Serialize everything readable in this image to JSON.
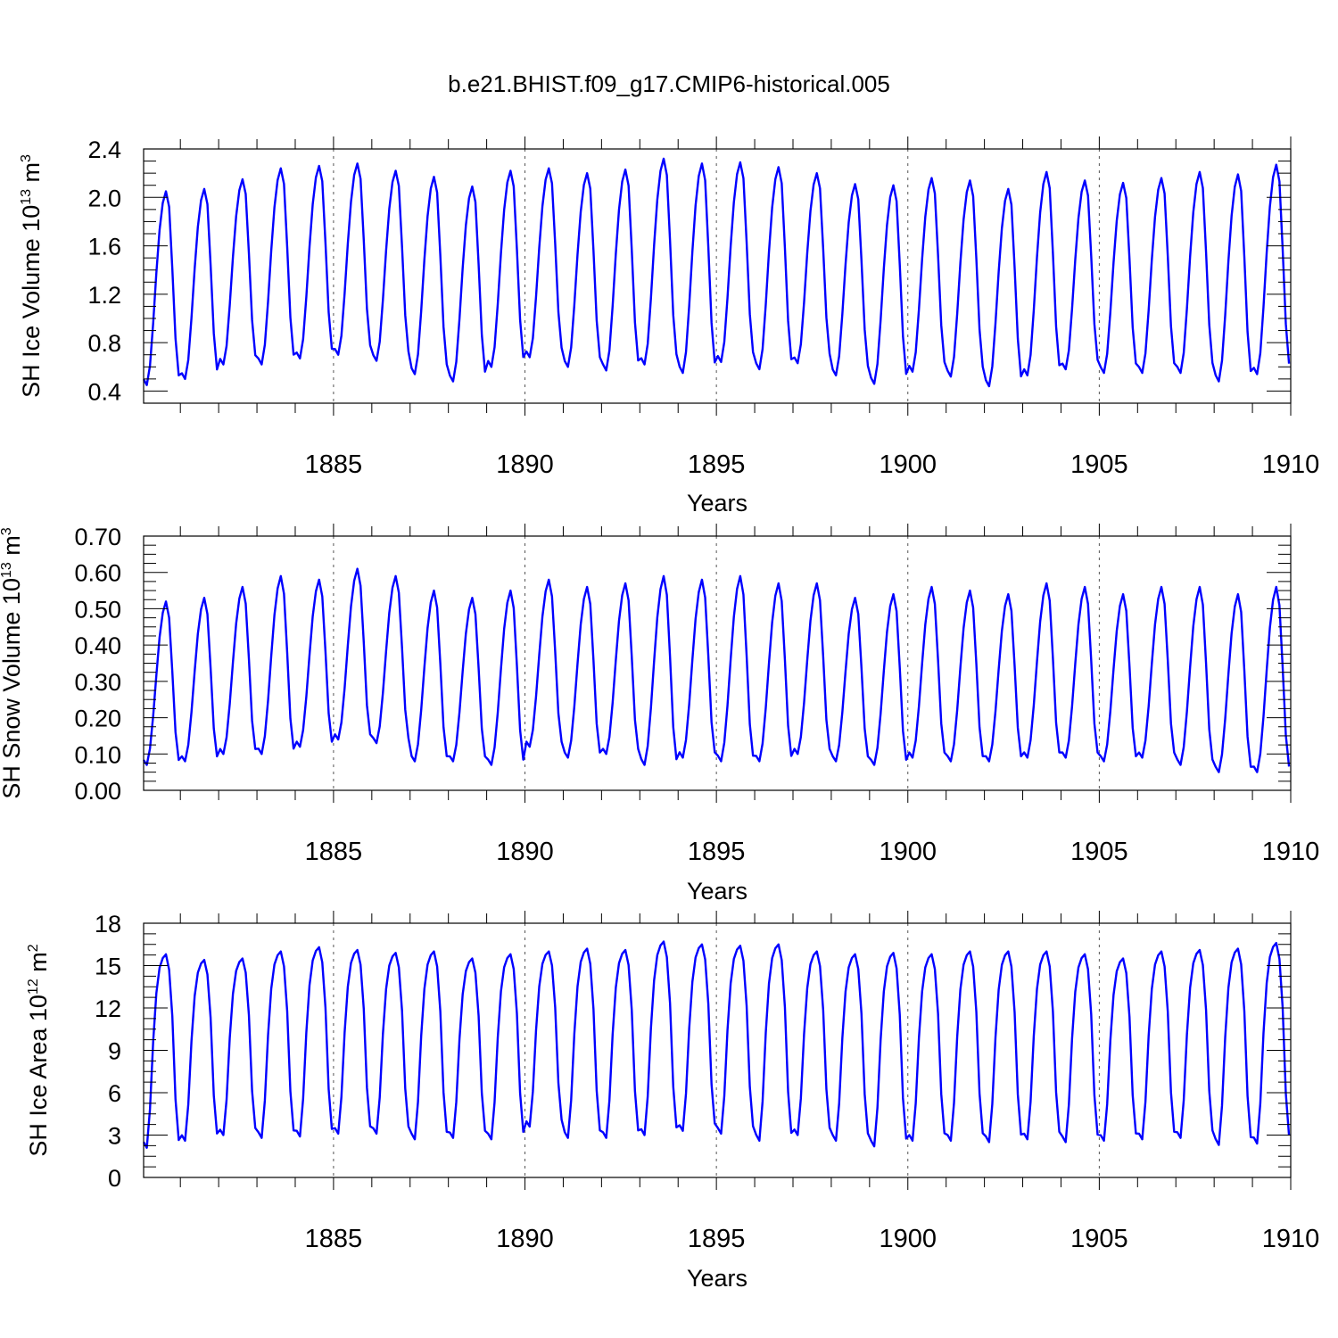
{
  "title": "b.e21.BHIST.f09_g17.CMIP6-historical.005",
  "colors": {
    "series": "#0000ff",
    "axes": "#000000"
  },
  "chart_data": [
    {
      "type": "line",
      "id": "ice-volume",
      "ylabel": "SH Ice Volume 10",
      "ylabel_sup": "13",
      "ylabel_unit": " m",
      "ylabel_unit_sup": "3",
      "xlabel": "Years",
      "xlim": [
        1880.04,
        1910.0
      ],
      "ylim": [
        0.3,
        2.4
      ],
      "yticks": [
        0.4,
        0.8,
        1.2,
        1.6,
        2.0,
        2.4
      ],
      "ytick_labels": [
        "0.4",
        "0.8",
        "1.2",
        "1.6",
        "2.0",
        "2.4"
      ],
      "xticks": [
        1885,
        1890,
        1895,
        1900,
        1905,
        1910
      ],
      "xtick_labels": [
        "1885",
        "1890",
        "1895",
        "1900",
        "1905",
        "1910"
      ],
      "x_start": 1880.04,
      "x_step": 0.08333,
      "year_max": [
        2.05,
        2.07,
        2.15,
        2.24,
        2.26,
        2.28,
        2.22,
        2.17,
        2.09,
        2.22,
        2.24,
        2.2,
        2.23,
        2.32,
        2.28,
        2.29,
        2.25,
        2.2,
        2.11,
        2.1,
        2.16,
        2.14,
        2.07,
        2.21,
        2.14,
        2.12,
        2.16,
        2.21,
        2.19,
        2.27
      ],
      "year_min": [
        0.45,
        0.5,
        0.62,
        0.62,
        0.67,
        0.7,
        0.65,
        0.54,
        0.48,
        0.6,
        0.68,
        0.6,
        0.57,
        0.62,
        0.55,
        0.64,
        0.58,
        0.63,
        0.53,
        0.46,
        0.56,
        0.52,
        0.44,
        0.53,
        0.58,
        0.55,
        0.55,
        0.55,
        0.48,
        0.54
      ],
      "cycle_shape": [
        0.03,
        0.0,
        0.1,
        0.32,
        0.58,
        0.8,
        0.94,
        1.0,
        0.92,
        0.6,
        0.24,
        0.05
      ]
    },
    {
      "type": "line",
      "id": "snow-volume",
      "ylabel": "SH Snow Volume 10",
      "ylabel_sup": "13",
      "ylabel_unit": " m",
      "ylabel_unit_sup": "3",
      "xlabel": "Years",
      "xlim": [
        1880.04,
        1910.0
      ],
      "ylim": [
        0.0,
        0.7
      ],
      "yticks": [
        0.0,
        0.1,
        0.2,
        0.3,
        0.4,
        0.5,
        0.6,
        0.7
      ],
      "ytick_labels": [
        "0.00",
        "0.10",
        "0.20",
        "0.30",
        "0.40",
        "0.50",
        "0.60",
        "0.70"
      ],
      "xticks": [
        1885,
        1890,
        1895,
        1900,
        1905,
        1910
      ],
      "xtick_labels": [
        "1885",
        "1890",
        "1895",
        "1900",
        "1905",
        "1910"
      ],
      "x_start": 1880.04,
      "x_step": 0.08333,
      "year_max": [
        0.52,
        0.53,
        0.56,
        0.59,
        0.58,
        0.61,
        0.59,
        0.55,
        0.53,
        0.55,
        0.58,
        0.56,
        0.57,
        0.59,
        0.58,
        0.59,
        0.57,
        0.57,
        0.53,
        0.54,
        0.56,
        0.55,
        0.54,
        0.57,
        0.56,
        0.54,
        0.56,
        0.56,
        0.54,
        0.56
      ],
      "year_min": [
        0.07,
        0.08,
        0.1,
        0.1,
        0.12,
        0.14,
        0.13,
        0.08,
        0.08,
        0.07,
        0.12,
        0.09,
        0.1,
        0.07,
        0.09,
        0.08,
        0.08,
        0.1,
        0.08,
        0.07,
        0.09,
        0.08,
        0.08,
        0.09,
        0.09,
        0.08,
        0.09,
        0.07,
        0.05,
        0.05
      ],
      "cycle_shape": [
        0.03,
        0.0,
        0.1,
        0.3,
        0.55,
        0.78,
        0.93,
        1.0,
        0.9,
        0.57,
        0.2,
        0.03
      ]
    },
    {
      "type": "line",
      "id": "ice-area",
      "ylabel": "SH Ice Area 10",
      "ylabel_sup": "12",
      "ylabel_unit": " m",
      "ylabel_unit_sup": "2",
      "xlabel": "Years",
      "xlim": [
        1880.04,
        1910.0
      ],
      "ylim": [
        0,
        18
      ],
      "yticks": [
        0,
        3,
        6,
        9,
        12,
        15,
        18
      ],
      "ytick_labels": [
        "0",
        "3",
        "6",
        "9",
        "12",
        "15",
        "18"
      ],
      "xticks": [
        1885,
        1890,
        1895,
        1900,
        1905,
        1910
      ],
      "xtick_labels": [
        "1885",
        "1890",
        "1895",
        "1900",
        "1905",
        "1910"
      ],
      "x_start": 1880.04,
      "x_step": 0.08333,
      "year_max": [
        15.8,
        15.4,
        15.5,
        16.0,
        16.3,
        16.1,
        15.9,
        16.0,
        15.5,
        15.8,
        16.0,
        16.2,
        16.1,
        16.7,
        16.5,
        16.4,
        16.5,
        16.0,
        15.8,
        15.9,
        15.8,
        16.0,
        16.0,
        16.0,
        15.8,
        15.5,
        16.0,
        16.1,
        16.2,
        16.6
      ],
      "year_min": [
        2.1,
        2.6,
        3.0,
        2.8,
        2.9,
        3.1,
        3.1,
        2.7,
        2.8,
        2.7,
        3.6,
        2.8,
        2.8,
        3.0,
        3.3,
        3.1,
        2.6,
        3.0,
        2.6,
        2.2,
        2.6,
        2.6,
        2.5,
        2.7,
        2.5,
        2.6,
        2.7,
        2.8,
        2.3,
        2.4
      ],
      "cycle_shape": [
        0.03,
        0.0,
        0.2,
        0.55,
        0.8,
        0.93,
        0.98,
        1.0,
        0.92,
        0.68,
        0.25,
        0.04
      ]
    }
  ]
}
